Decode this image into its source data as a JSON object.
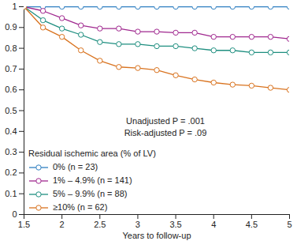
{
  "chart_data": {
    "type": "line",
    "x_label": "Years to follow-up",
    "annotations": [
      "Unadjusted P = .001",
      "Risk-adjusted P = .09"
    ],
    "legend_title": "Residual ischemic area (% of LV)",
    "legend": "bottom-left",
    "marker": "circle",
    "x": [
      1.5,
      1.75,
      2,
      2.25,
      2.5,
      2.75,
      3,
      3.25,
      3.5,
      3.75,
      4,
      4.25,
      4.5,
      4.75,
      5
    ],
    "series": [
      {
        "name": "0% (n = 23)",
        "color": "#2f7fc1",
        "values": [
          1,
          1,
          1,
          1,
          1,
          1,
          1,
          1,
          1,
          1,
          1,
          1,
          1,
          1,
          1
        ]
      },
      {
        "name": "1% – 4.9% (n = 141)",
        "color": "#a0288f",
        "values": [
          1,
          0.98,
          0.945,
          0.91,
          0.895,
          0.895,
          0.88,
          0.88,
          0.875,
          0.875,
          0.855,
          0.855,
          0.855,
          0.855,
          0.845
        ]
      },
      {
        "name": "5% – 9.9% (n = 88)",
        "color": "#1f8f80",
        "values": [
          1,
          0.935,
          0.895,
          0.865,
          0.83,
          0.82,
          0.82,
          0.81,
          0.81,
          0.8,
          0.79,
          0.79,
          0.78,
          0.78,
          0.78
        ]
      },
      {
        "name": "≥10% (n = 62)",
        "color": "#d9731f",
        "values": [
          1,
          0.9,
          0.855,
          0.79,
          0.74,
          0.71,
          0.705,
          0.695,
          0.67,
          0.65,
          0.635,
          0.625,
          0.62,
          0.61,
          0.6
        ]
      }
    ],
    "xlim": [
      1.5,
      5
    ],
    "xticks": [
      1.5,
      2,
      2.5,
      3,
      3.5,
      4,
      4.5,
      5
    ],
    "ylim": [
      0,
      1
    ],
    "yticks": [
      0,
      0.1,
      0.2,
      0.3,
      0.4,
      0.5,
      0.6,
      0.7,
      0.8,
      0.9,
      1
    ],
    "grid": false
  }
}
